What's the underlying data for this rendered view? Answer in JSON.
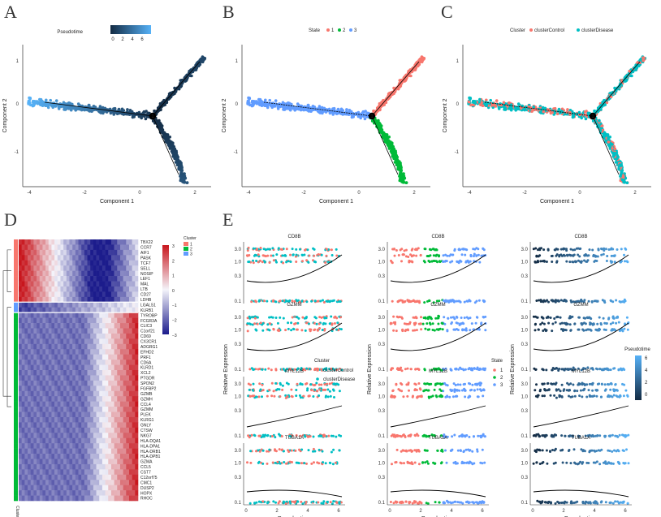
{
  "panels": {
    "A": {
      "letter": "A",
      "legend_title": "Pseudotime",
      "legend_ticks": [
        "0",
        "2",
        "4",
        "6"
      ],
      "xlabel": "Component 1",
      "ylabel": "Component 2",
      "xticks": [
        "-4",
        "-2",
        "0",
        "2"
      ],
      "yticks": [
        "1",
        "0",
        "-1"
      ],
      "node_label": "1"
    },
    "B": {
      "letter": "B",
      "legend_title": "State",
      "legend_items": [
        {
          "label": "1",
          "color": "#f8766d"
        },
        {
          "label": "2",
          "color": "#00ba38"
        },
        {
          "label": "3",
          "color": "#619cff"
        }
      ],
      "xlabel": "Component 1",
      "ylabel": "Component 2",
      "xticks": [
        "-4",
        "-2",
        "0",
        "2"
      ],
      "yticks": [
        "1",
        "0",
        "-1"
      ],
      "node_label": "1"
    },
    "C": {
      "letter": "C",
      "legend_title": "Cluster",
      "legend_items": [
        {
          "label": "clusterControl",
          "color": "#f8766d"
        },
        {
          "label": "clusterDisease",
          "color": "#00bfc4"
        }
      ],
      "xlabel": "Component 1",
      "ylabel": "Component 2",
      "xticks": [
        "-4",
        "-2",
        "0",
        "2"
      ],
      "yticks": [
        "1",
        "0",
        "-1"
      ],
      "node_label": "1"
    },
    "D": {
      "letter": "D",
      "legend_cluster_title": "Cluster",
      "cluster_items": [
        {
          "label": "1",
          "color": "#f8766d"
        },
        {
          "label": "2",
          "color": "#00ba38"
        },
        {
          "label": "3",
          "color": "#619cff"
        }
      ],
      "scale_ticks": [
        "3",
        "2",
        "1",
        "0",
        "−1",
        "−2",
        "−3"
      ],
      "side_label": "Cluster",
      "genes": [
        "TBX22",
        "CCR7",
        "AIF1",
        "PASK",
        "TCF7",
        "SELL",
        "NOSIP",
        "LEF1",
        "MAL",
        "LTB",
        "CD27",
        "LDHB",
        "LGALS1",
        "KLRB1",
        "TYROBP",
        "FCGR3A",
        "CLIC3",
        "C1orf21",
        "CD69",
        "CX3CR1",
        "ADGRG1",
        "EFHD2",
        "PRF1",
        "CD6A",
        "KLRD1",
        "XCL2",
        "PTGDR",
        "SPON2",
        "FGFBP2",
        "GZMB",
        "GZMH",
        "CCL4",
        "GZMM",
        "PLEK",
        "KLRG1",
        "GNLY",
        "CTSW",
        "NKG7",
        "HLA-DQA1",
        "HLA-DPA1",
        "HLA-DRB1",
        "HLA-DPB1",
        "GZMA",
        "CCL5",
        "CST7",
        "C12orf75",
        "CMC1",
        "DUSP2",
        "HOPX",
        "RHOC"
      ]
    },
    "E": {
      "letter": "E",
      "genes": [
        "CD8B",
        "GZMM",
        "MYL12B",
        "TUBA1A"
      ],
      "yticks": [
        "3.0",
        "1.0",
        "0.3",
        "0.1"
      ],
      "xticks": [
        "0",
        "2",
        "4",
        "6"
      ],
      "xlabel": "Pseudo−time",
      "ylabel": "Relative Expression",
      "legends": [
        {
          "title": "Cluster",
          "items": [
            {
              "label": "clusterControl",
              "color": "#f8766d"
            },
            {
              "label": "clusterDisease",
              "color": "#00bfc4"
            }
          ]
        },
        {
          "title": "State",
          "items": [
            {
              "label": "1",
              "color": "#f8766d"
            },
            {
              "label": "2",
              "color": "#00ba38"
            },
            {
              "label": "3",
              "color": "#619cff"
            }
          ]
        },
        {
          "title": "Pseudotime",
          "ticks": [
            "6",
            "4",
            "2",
            "0"
          ]
        }
      ]
    }
  }
}
